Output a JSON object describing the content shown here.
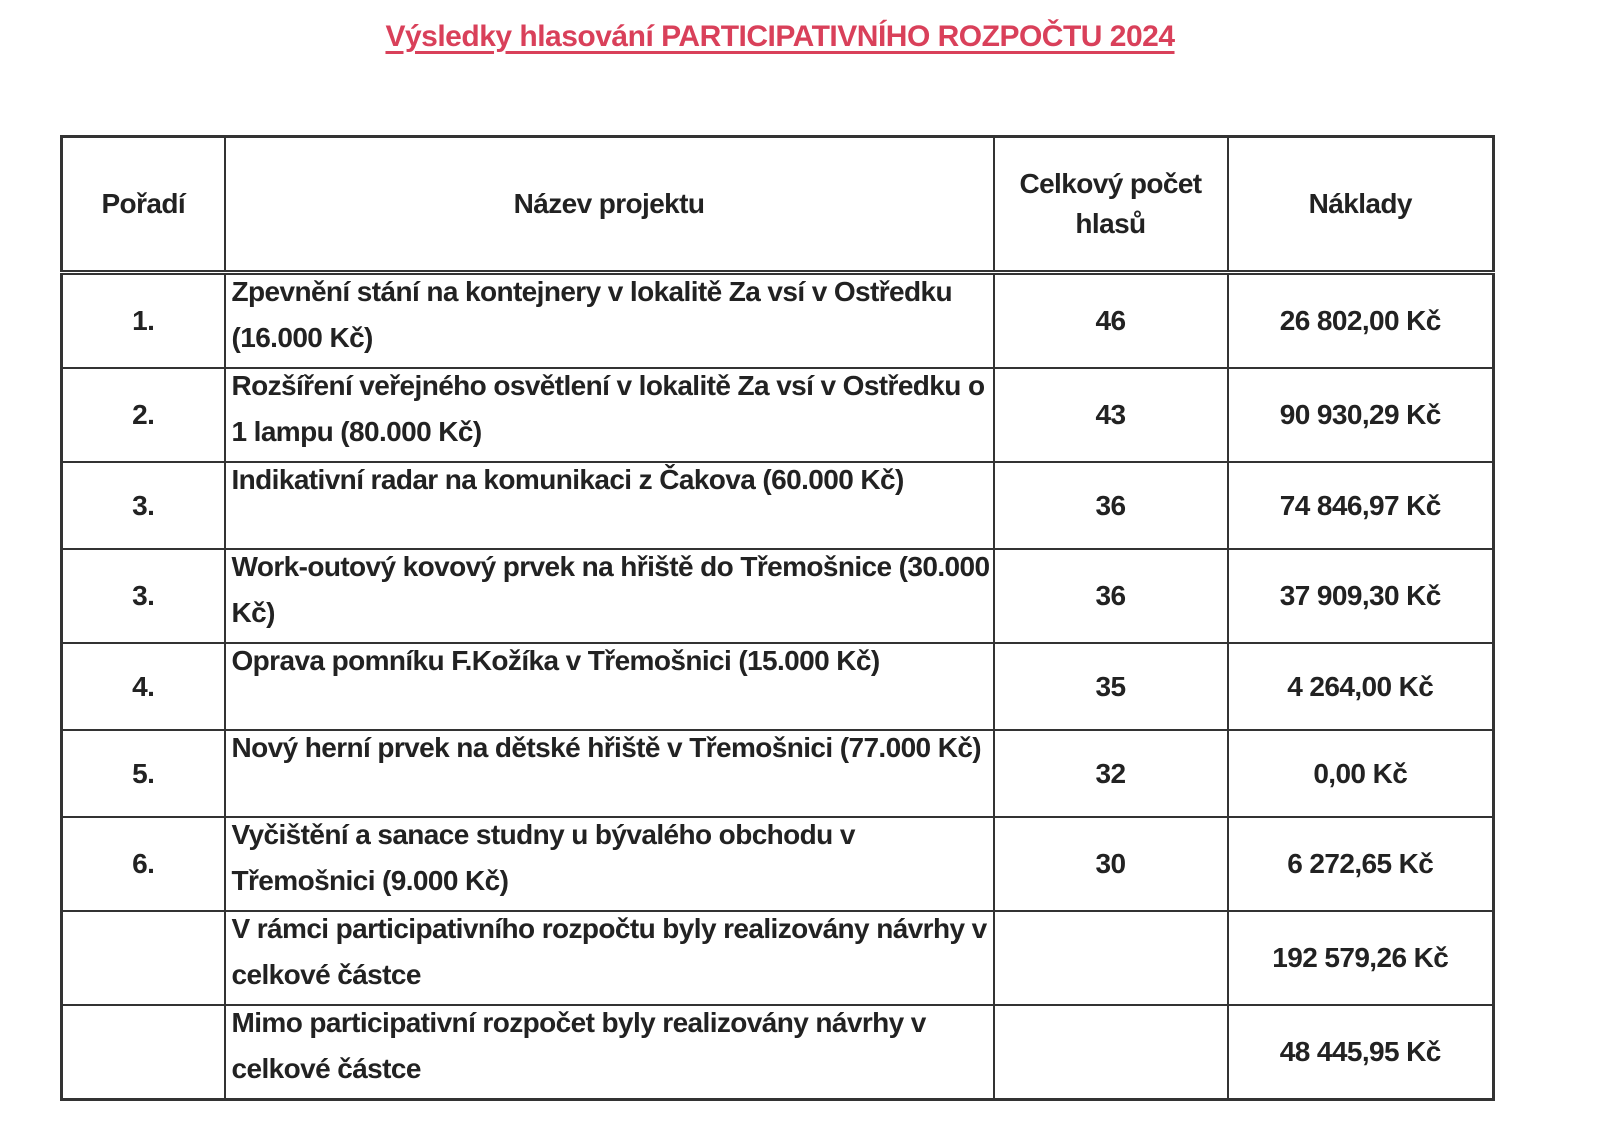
{
  "title": "Výsledky hlasování PARTICIPATIVNÍHO ROZPOČTU 2024",
  "table": {
    "headers": [
      "Pořadí",
      "Název projektu",
      "Celkový počet hlasů",
      "Náklady"
    ],
    "rows": [
      {
        "rank": "1.",
        "name": "Zpevnění stání na kontejnery v lokalitě Za vsí v Ostředku (16.000 Kč)",
        "votes": "46",
        "cost": "26 802,00 Kč"
      },
      {
        "rank": "2.",
        "name": "Rozšíření veřejného osvětlení v lokalitě Za vsí v Ostředku o 1 lampu (80.000 Kč)",
        "votes": "43",
        "cost": "90 930,29 Kč"
      },
      {
        "rank": "3.",
        "name": "Indikativní radar na komunikaci z Čakova (60.000 Kč)",
        "votes": "36",
        "cost": "74 846,97 Kč"
      },
      {
        "rank": "3.",
        "name": "Work-outový kovový prvek na hřiště do Třemošnice (30.000 Kč)",
        "votes": "36",
        "cost": "37 909,30 Kč"
      },
      {
        "rank": "4.",
        "name": "Oprava pomníku F.Kožíka v Třemošnici (15.000 Kč)",
        "votes": "35",
        "cost": "4 264,00 Kč"
      },
      {
        "rank": "5.",
        "name": "Nový herní prvek na dětské hřiště v Třemošnici (77.000 Kč)",
        "votes": "32",
        "cost": "0,00 Kč"
      },
      {
        "rank": "6.",
        "name": "Vyčištění a sanace studny u bývalého obchodu v Třemošnici (9.000 Kč)",
        "votes": "30",
        "cost": "6 272,65 Kč"
      },
      {
        "rank": "",
        "name": "V rámci participativního rozpočtu byly realizovány návrhy v celkové částce",
        "votes": "",
        "cost": "192 579,26 Kč"
      },
      {
        "rank": "",
        "name": "Mimo participativní rozpočet byly realizovány návrhy v celkové částce",
        "votes": "",
        "cost": "48 445,95 Kč"
      }
    ]
  }
}
